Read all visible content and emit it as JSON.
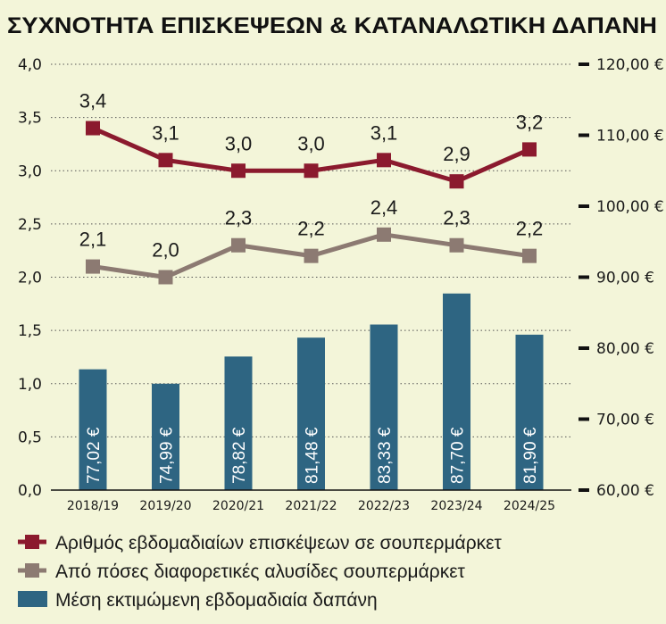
{
  "chart_data": {
    "type": "bar+line",
    "title": "ΣΥΧΝΟΤΗΤΑ ΕΠΙΣΚΕΨΕΩΝ & ΚΑΤΑΝΑΛΩΤΙΚΗ ΔΑΠΑΝΗ",
    "categories": [
      "2018/19",
      "2019/20",
      "2020/21",
      "2021/22",
      "2022/23",
      "2023/24",
      "2024/25"
    ],
    "left_axis": {
      "ylim": [
        0,
        4
      ],
      "ticks": [
        "0,0",
        "0,5",
        "1,0",
        "1,5",
        "2,0",
        "2,5",
        "3,0",
        "3,5",
        "4,0"
      ]
    },
    "right_axis": {
      "ylim": [
        60,
        120
      ],
      "ticks": [
        "60,00 €",
        "70,00 €",
        "80,00 €",
        "90,00 €",
        "100,00 €",
        "110,00 €",
        "120,00 €"
      ]
    },
    "grid": true,
    "legend_position": "bottom",
    "series": [
      {
        "name": "Αριθμός εβδομαδιαίων επισκέψεων σε σουπερμάρκετ",
        "type": "line",
        "axis": "left",
        "color": "#8b1a2e",
        "values": [
          3.4,
          3.1,
          3.0,
          3.0,
          3.1,
          2.9,
          3.2
        ],
        "labels": [
          "3,4",
          "3,1",
          "3,0",
          "3,0",
          "3,1",
          "2,9",
          "3,2"
        ]
      },
      {
        "name": "Από πόσες διαφορετικές αλυσίδες σουπερμάρκετ",
        "type": "line",
        "axis": "left",
        "color": "#8c7a72",
        "values": [
          2.1,
          2.0,
          2.3,
          2.2,
          2.4,
          2.3,
          2.2
        ],
        "labels": [
          "2,1",
          "2,0",
          "2,3",
          "2,2",
          "2,4",
          "2,3",
          "2,2"
        ]
      },
      {
        "name": "Μέση εκτιμώμενη εβδομαδιαία δαπάνη",
        "type": "bar",
        "axis": "right",
        "color": "#2e6582",
        "values": [
          77.02,
          74.99,
          78.82,
          81.48,
          83.33,
          87.7,
          81.9
        ],
        "labels": [
          "77,02 €",
          "74,99 €",
          "78,82 €",
          "81,48 €",
          "83,33 €",
          "87,70 €",
          "81,90 €"
        ]
      }
    ],
    "background": "#f3f5d9"
  }
}
